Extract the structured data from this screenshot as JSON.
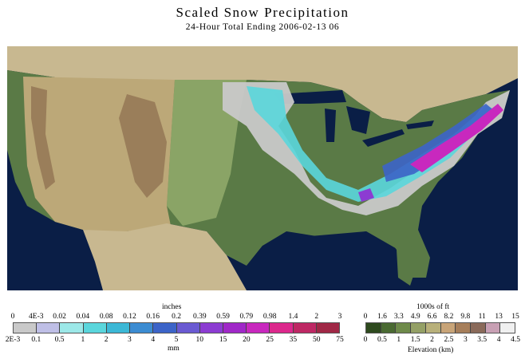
{
  "title": "Scaled Snow Precipitation",
  "subtitle": "24-Hour Total Ending 2006-02-13 06",
  "precip_legend": {
    "top_unit": "inches",
    "top_ticks": [
      "0",
      "4E-3",
      "0.02",
      "0.04",
      "0.08",
      "0.12",
      "0.16",
      "0.2",
      "0.39",
      "0.59",
      "0.79",
      "0.98",
      "1.4",
      "2",
      "3"
    ],
    "bottom_ticks": [
      "2E-3",
      "0.1",
      "0.5",
      "1",
      "2",
      "3",
      "4",
      "5",
      "10",
      "15",
      "20",
      "25",
      "35",
      "50",
      "75"
    ],
    "bottom_unit": "mm",
    "colors": [
      "#c9c9c9",
      "#bfbfe6",
      "#9ce8e8",
      "#5ad6dc",
      "#3cb8d6",
      "#3c8cd2",
      "#3c64c8",
      "#6a5ad2",
      "#8c3cd2",
      "#a028c8",
      "#c828be",
      "#dc288c",
      "#be2864",
      "#a02846"
    ]
  },
  "elev_legend": {
    "top_unit": "1000s of ft",
    "top_ticks": [
      "0",
      "1.6",
      "3.3",
      "4.9",
      "6.6",
      "8.2",
      "9.8",
      "11",
      "13",
      "15"
    ],
    "bottom_ticks": [
      "0",
      "0.5",
      "1",
      "1.5",
      "2",
      "2.5",
      "3",
      "3.5",
      "4",
      "4.5"
    ],
    "bottom_unit": "Elevation (km)",
    "colors": [
      "#2e4a1e",
      "#4a6a32",
      "#6e8a4a",
      "#94a066",
      "#b8b07a",
      "#c8a478",
      "#a67e5a",
      "#8a6a5a",
      "#c8a0b4",
      "#f0f0f0"
    ]
  },
  "map_colors": {
    "ocean": "#0a1e46",
    "canada": "#c8b890",
    "lowland": "#5a7a46",
    "plains": "#8aa466",
    "highland": "#bca878",
    "mountain": "#9a7e5a"
  }
}
